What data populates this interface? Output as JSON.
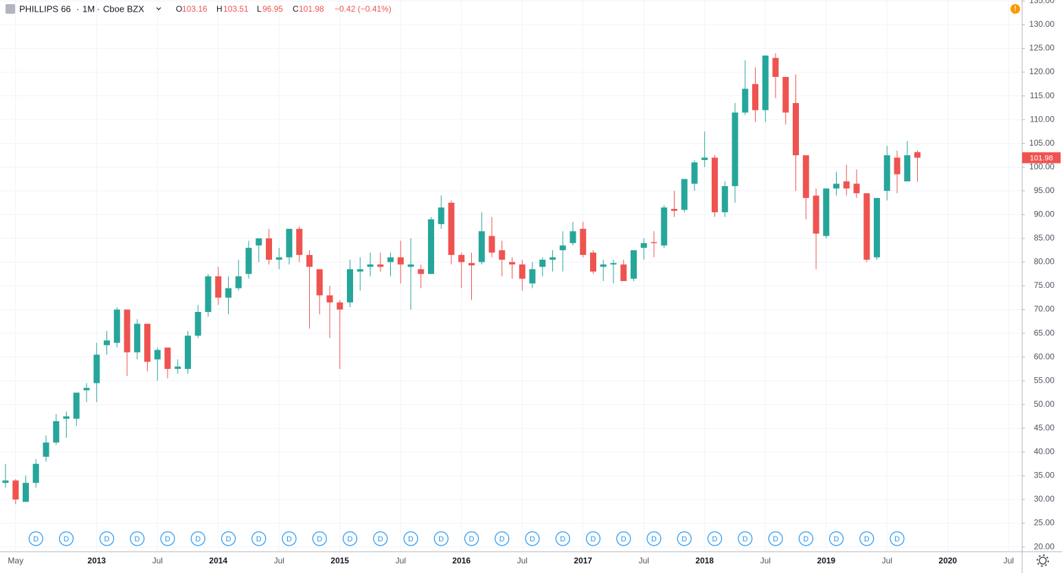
{
  "chart_data": {
    "type": "candlestick",
    "title": "PHILLIPS 66",
    "interval": "1M",
    "exchange": "Cboe BZX",
    "ohlc_labels": [
      "O",
      "H",
      "L",
      "C"
    ],
    "change": "−0.42 (−0.41%)",
    "up_color": "#26a69a",
    "down_color": "#ef5350",
    "grid": true,
    "categories": [
      null,
      "May",
      null,
      null,
      null,
      null,
      null,
      null,
      null,
      "2013",
      null,
      null,
      null,
      null,
      null,
      "Jul",
      null,
      null,
      null,
      null,
      null,
      "2014",
      null,
      null,
      null,
      null,
      null,
      "Jul",
      null,
      null,
      null,
      null,
      null,
      "2015",
      null,
      null,
      null,
      null,
      null,
      "Jul",
      null,
      null,
      null,
      null,
      null,
      "2016",
      null,
      null,
      null,
      null,
      null,
      "Jul",
      null,
      null,
      null,
      null,
      null,
      "2017",
      null,
      null,
      null,
      null,
      null,
      "Jul",
      null,
      null,
      null,
      null,
      null,
      "2018",
      null,
      null,
      null,
      null,
      null,
      "Jul",
      null,
      null,
      null,
      null,
      null,
      "2019",
      null,
      null,
      null,
      null,
      null,
      "Jul",
      null,
      null,
      null,
      null,
      null,
      "2020",
      null,
      null,
      null,
      null,
      null,
      "Jul",
      null
    ],
    "open": [
      33.5,
      34,
      29.5,
      33.5,
      39,
      42,
      47,
      47,
      53,
      54.5,
      62.5,
      63,
      70,
      61,
      67,
      59.5,
      62,
      57.5,
      57.5,
      64.5,
      69.5,
      77,
      72.5,
      74.5,
      77.5,
      83.5,
      85,
      80.5,
      81,
      87,
      81.5,
      78.5,
      73,
      71.5,
      71.5,
      78,
      79,
      79.5,
      80,
      81,
      79,
      78.5,
      77.5,
      88,
      92.5,
      81.5,
      79.8,
      80,
      85.5,
      82.5,
      80,
      79.5,
      75.5,
      79,
      80.5,
      82.5,
      84,
      87,
      82,
      79,
      79.5,
      79.5,
      76.5,
      83,
      84.2,
      83.5,
      91.2,
      91,
      96.5,
      101.5,
      102,
      90.5,
      96,
      111.5,
      117.5,
      112,
      123,
      119,
      113.5,
      102.5,
      94,
      85.5,
      95.5,
      97,
      96.5,
      94.5,
      81,
      95,
      102,
      97,
      103.16,
      null,
      null,
      null,
      null,
      null,
      null,
      null,
      null,
      null,
      null
    ],
    "high": [
      37.5,
      34.3,
      35,
      38.5,
      43.5,
      48,
      48.5,
      52.5,
      54.5,
      63,
      65.5,
      70.5,
      70,
      68,
      67,
      62,
      62,
      59.5,
      65.5,
      71,
      77.5,
      79,
      77,
      80.5,
      84.5,
      85,
      87,
      83,
      87,
      87.5,
      82.5,
      78.5,
      75,
      72,
      80.5,
      81,
      82,
      82,
      82,
      84.5,
      85,
      79.5,
      89.5,
      94,
      93,
      82,
      82,
      90.5,
      89.5,
      84.5,
      81,
      80.5,
      80,
      81,
      82.5,
      86.5,
      88.5,
      88.5,
      82.5,
      80.5,
      80.5,
      80.5,
      82.5,
      85,
      86.5,
      92,
      95,
      97.5,
      101.5,
      107.5,
      102.5,
      97,
      113.5,
      122.5,
      121,
      123.5,
      124,
      119,
      119.5,
      102.5,
      95.5,
      95.5,
      99,
      100.5,
      99.5,
      94.5,
      93.5,
      104.5,
      103.5,
      105.5,
      103.51,
      null,
      null,
      null,
      null,
      null,
      null,
      null,
      null,
      null,
      null
    ],
    "low": [
      32.5,
      29,
      29.5,
      32.5,
      38,
      41.5,
      43,
      45.5,
      50.5,
      50.5,
      60.5,
      62,
      56,
      59.5,
      57,
      55,
      55.5,
      56.5,
      56.5,
      64,
      68.5,
      71,
      69,
      74,
      76.5,
      80,
      79.5,
      78.5,
      79.5,
      80,
      66,
      69,
      64,
      57.5,
      70.5,
      74,
      77,
      78,
      77,
      75.5,
      70,
      74.5,
      77.5,
      87,
      79.5,
      74.5,
      72,
      79.5,
      81,
      77,
      76.5,
      74,
      74.5,
      77,
      78,
      78,
      83.5,
      81,
      77.5,
      76,
      75.5,
      76,
      76,
      80.5,
      81,
      83,
      89.5,
      90.5,
      95,
      100,
      89.5,
      89.5,
      92.5,
      111,
      109.5,
      109.5,
      114.5,
      109,
      95,
      89,
      78.5,
      85,
      94,
      94,
      93.5,
      80,
      80.5,
      93,
      94.5,
      97,
      96.95,
      null,
      null,
      null,
      null,
      null,
      null,
      null,
      null,
      null,
      null
    ],
    "close": [
      34,
      30,
      33.5,
      37.5,
      42,
      46.5,
      47.5,
      52.5,
      53.5,
      60.5,
      63.5,
      70,
      61,
      67,
      59,
      61.5,
      57.5,
      58,
      64.5,
      69.5,
      77,
      72.5,
      74.5,
      77,
      83,
      85,
      80.5,
      81,
      87,
      81.5,
      79,
      73,
      71.5,
      70,
      78.5,
      78.5,
      79.5,
      79,
      81,
      79.5,
      79.5,
      77.5,
      89,
      91.5,
      81.5,
      80,
      79.3,
      86.5,
      82,
      80.5,
      79.5,
      76.5,
      78.5,
      80.5,
      81,
      83.5,
      86.5,
      81.5,
      78,
      79.5,
      79.8,
      76,
      82.5,
      84,
      84,
      91.5,
      90.8,
      97.5,
      101,
      102,
      90.5,
      96,
      111.5,
      116.5,
      112,
      123.5,
      119,
      111.5,
      102.5,
      93.5,
      86,
      95.5,
      96.5,
      95.5,
      94.5,
      80.5,
      93.5,
      102.5,
      98.5,
      102.5,
      101.98,
      null,
      null,
      null,
      null,
      null,
      null,
      null,
      null,
      null,
      null
    ],
    "dividends": [
      null,
      null,
      null,
      "D",
      null,
      null,
      "D",
      null,
      null,
      null,
      "D",
      null,
      null,
      "D",
      null,
      null,
      "D",
      null,
      null,
      "D",
      null,
      null,
      "D",
      null,
      null,
      "D",
      null,
      null,
      "D",
      null,
      null,
      "D",
      null,
      null,
      "D",
      null,
      null,
      "D",
      null,
      null,
      "D",
      null,
      null,
      "D",
      null,
      null,
      "D",
      null,
      null,
      "D",
      null,
      null,
      "D",
      null,
      null,
      "D",
      null,
      null,
      "D",
      null,
      null,
      "D",
      null,
      null,
      "D",
      null,
      null,
      "D",
      null,
      null,
      "D",
      null,
      null,
      "D",
      null,
      null,
      "D",
      null,
      null,
      "D",
      null,
      null,
      "D",
      null,
      null,
      "D",
      null,
      null,
      "D",
      null,
      null,
      null,
      null,
      null,
      null,
      null,
      null,
      null,
      null,
      null,
      null
    ],
    "ylim": [
      19,
      135.2
    ],
    "yticks": [
      {
        "value": 20,
        "label": "20.00"
      },
      {
        "value": 25,
        "label": "25.00"
      },
      {
        "value": 30,
        "label": "30.00"
      },
      {
        "value": 35,
        "label": "35.00"
      },
      {
        "value": 40,
        "label": "40.00"
      },
      {
        "value": 45,
        "label": "45.00"
      },
      {
        "value": 50,
        "label": "50.00"
      },
      {
        "value": 55,
        "label": "55.00"
      },
      {
        "value": 60,
        "label": "60.00"
      },
      {
        "value": 65,
        "label": "65.00"
      },
      {
        "value": 70,
        "label": "70.00"
      },
      {
        "value": 75,
        "label": "75.00"
      },
      {
        "value": 80,
        "label": "80.00"
      },
      {
        "value": 85,
        "label": "85.00"
      },
      {
        "value": 90,
        "label": "90.00"
      },
      {
        "value": 95,
        "label": "95.00"
      },
      {
        "value": 100,
        "label": "100.00"
      },
      {
        "value": 105,
        "label": "105.00"
      },
      {
        "value": 110,
        "label": "110.00"
      },
      {
        "value": 115,
        "label": "115.00"
      },
      {
        "value": 120,
        "label": "120.00"
      },
      {
        "value": 125,
        "label": "125.00"
      },
      {
        "value": 130,
        "label": "130.00"
      },
      {
        "value": 135,
        "label": "135.00"
      }
    ]
  }
}
